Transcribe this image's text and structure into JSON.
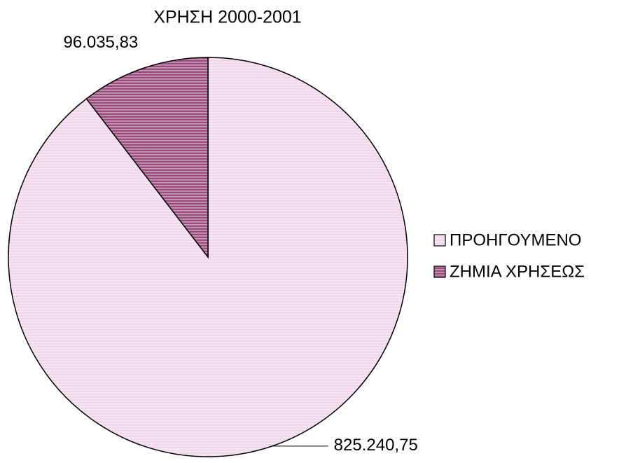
{
  "chart_data": {
    "type": "pie",
    "title": "ΧΡΗΣΗ 2000-2001",
    "categories": [
      "ΠΡΟΗΓΟΥΜΕΝΟ",
      "ΖΗΜΙΑ ΧΡΗΣΕΩΣ"
    ],
    "values": [
      825240.75,
      96035.83
    ],
    "value_labels": [
      "825.240,75",
      "96.035,83"
    ],
    "colors": [
      "#f1d6ec",
      "#9a4d7c"
    ],
    "legend": "right"
  }
}
